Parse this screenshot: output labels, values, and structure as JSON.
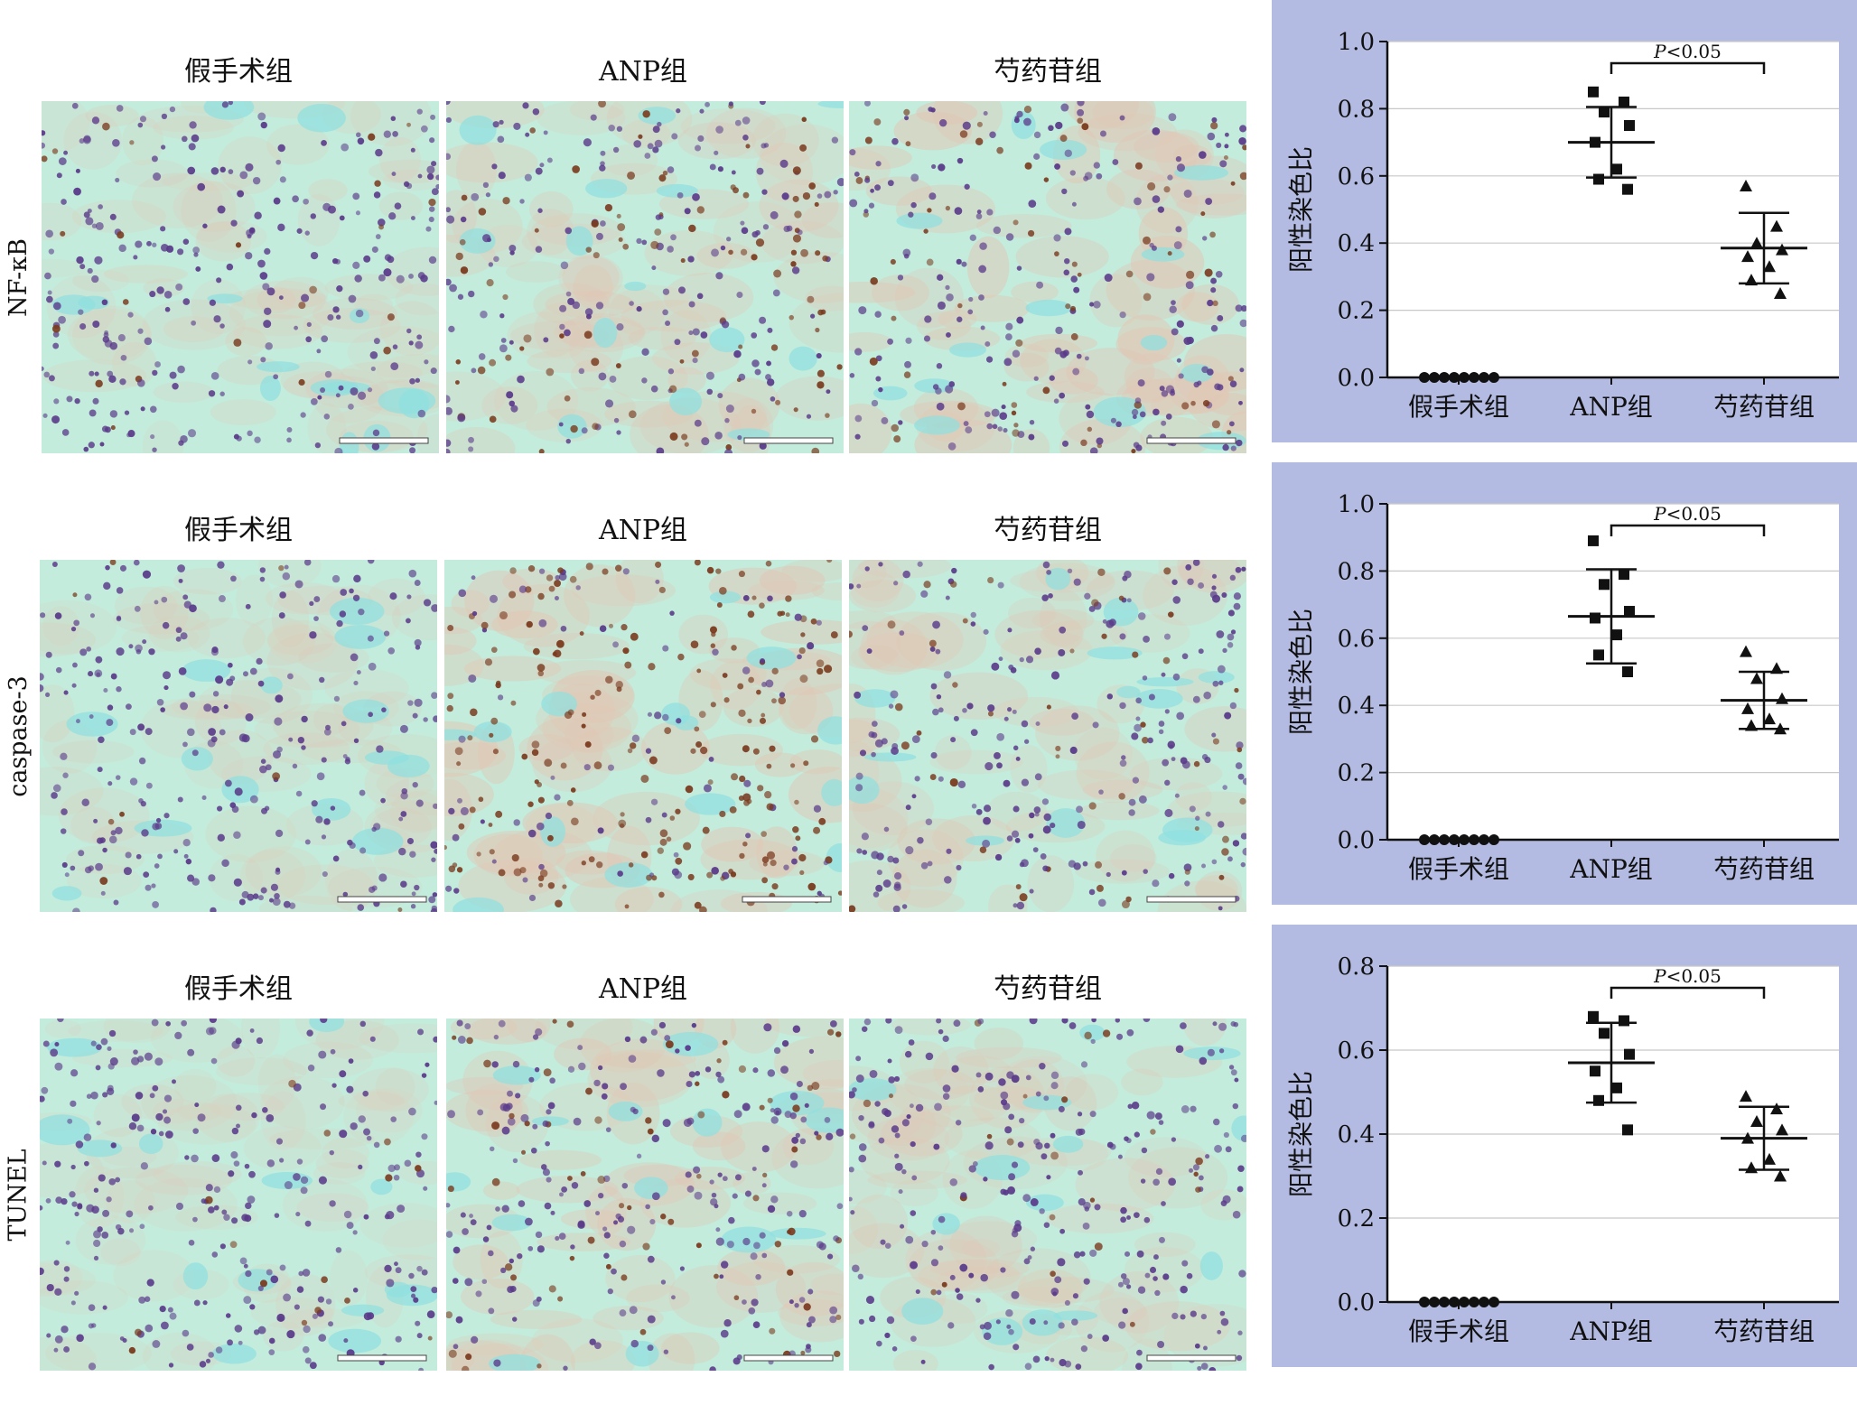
{
  "group_labels": [
    "假手术组",
    "ANP组",
    "芍药苷组"
  ],
  "rows": [
    {
      "marker": "NF-κB"
    },
    {
      "marker": "caspase-3"
    },
    {
      "marker": "TUNEL"
    }
  ],
  "colors": {
    "panel_background": "#b3bbe2",
    "plot_background": "#ffffff",
    "gridline": "#c8c8c8",
    "marker": "#111111",
    "tissue_base": "#c3ecdc",
    "hematoxylin_nucleus": "#5a3a8a",
    "dab_positive_nucleus": "#7a3a1e",
    "cytoplasm_tint": "#e2c6b4",
    "lumen": "#8fdfe0"
  },
  "chart_data": [
    {
      "type": "scatter",
      "ylabel": "阳性染色比",
      "ylim": [
        0,
        1.0
      ],
      "yticks": [
        "0.0",
        "0.2",
        "0.4",
        "0.6",
        "0.8",
        "1.0"
      ],
      "categories": [
        "假手术组",
        "ANP组",
        "芍药苷组"
      ],
      "markers": [
        "circle",
        "square",
        "triangle"
      ],
      "series": [
        {
          "points": [
            0,
            0,
            0,
            0,
            0,
            0,
            0,
            0
          ],
          "mean": 0.0,
          "sd": 0.0
        },
        {
          "points": [
            0.85,
            0.82,
            0.79,
            0.75,
            0.7,
            0.62,
            0.59,
            0.56
          ],
          "mean": 0.7,
          "sd": 0.105
        },
        {
          "points": [
            0.57,
            0.45,
            0.4,
            0.38,
            0.36,
            0.33,
            0.29,
            0.25
          ],
          "mean": 0.385,
          "sd": 0.105
        }
      ],
      "annotation": {
        "text": "P<0.05",
        "between": [
          "ANP组",
          "芍药苷组"
        ]
      },
      "grid": true
    },
    {
      "type": "scatter",
      "ylabel": "阳性染色比",
      "ylim": [
        0,
        1.0
      ],
      "yticks": [
        "0.0",
        "0.2",
        "0.4",
        "0.6",
        "0.8",
        "1.0"
      ],
      "categories": [
        "假手术组",
        "ANP组",
        "芍药苷组"
      ],
      "markers": [
        "circle",
        "square",
        "triangle"
      ],
      "series": [
        {
          "points": [
            0,
            0,
            0,
            0,
            0,
            0,
            0,
            0
          ],
          "mean": 0.0,
          "sd": 0.0
        },
        {
          "points": [
            0.89,
            0.79,
            0.76,
            0.68,
            0.66,
            0.61,
            0.55,
            0.5
          ],
          "mean": 0.665,
          "sd": 0.14
        },
        {
          "points": [
            0.56,
            0.51,
            0.48,
            0.42,
            0.39,
            0.36,
            0.34,
            0.33
          ],
          "mean": 0.415,
          "sd": 0.085
        }
      ],
      "annotation": {
        "text": "P<0.05",
        "between": [
          "ANP组",
          "芍药苷组"
        ]
      },
      "grid": true
    },
    {
      "type": "scatter",
      "ylabel": "阳性染色比",
      "ylim": [
        0,
        0.8
      ],
      "yticks": [
        "0.0",
        "0.2",
        "0.4",
        "0.6",
        "0.8"
      ],
      "categories": [
        "假手术组",
        "ANP组",
        "芍药苷组"
      ],
      "markers": [
        "circle",
        "square",
        "triangle"
      ],
      "series": [
        {
          "points": [
            0,
            0,
            0,
            0,
            0,
            0,
            0,
            0
          ],
          "mean": 0.0,
          "sd": 0.0
        },
        {
          "points": [
            0.68,
            0.67,
            0.64,
            0.59,
            0.55,
            0.51,
            0.48,
            0.41
          ],
          "mean": 0.57,
          "sd": 0.095
        },
        {
          "points": [
            0.49,
            0.46,
            0.43,
            0.41,
            0.39,
            0.34,
            0.32,
            0.3
          ],
          "mean": 0.39,
          "sd": 0.075
        }
      ],
      "annotation": {
        "text": "P<0.05",
        "between": [
          "ANP组",
          "芍药苷组"
        ]
      },
      "grid": true
    }
  ]
}
